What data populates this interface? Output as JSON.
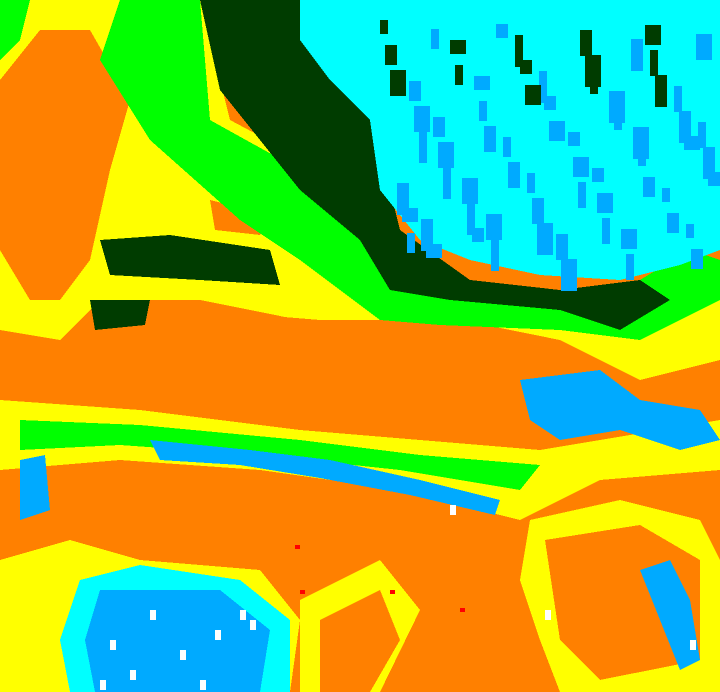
{
  "image": {
    "kind": "classified raster map",
    "palette": {
      "orange": "#ff8000",
      "yellow": "#ffff00",
      "green": "#00ff00",
      "dark_green": "#003c00",
      "cyan": "#00ffff",
      "blue": "#00aaff",
      "white": "#ffffff",
      "red": "#ff0000"
    }
  }
}
